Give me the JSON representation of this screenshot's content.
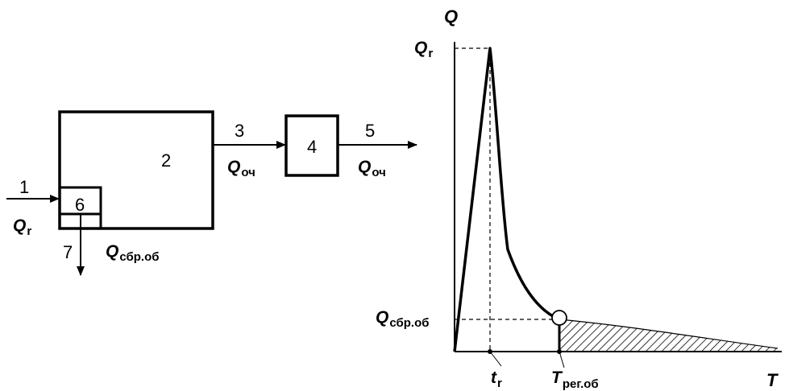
{
  "scheme": {
    "labels": {
      "n1": "1",
      "n2": "2",
      "n3": "3",
      "n4": "4",
      "n5": "5",
      "n6": "6",
      "n7": "7"
    },
    "flows": {
      "q_in": {
        "main": "Q",
        "sub": "r"
      },
      "q_clean_1": {
        "main": "Q",
        "sub": "оч"
      },
      "q_clean_2": {
        "main": "Q",
        "sub": "оч"
      },
      "q_discharge": {
        "main": "Q",
        "sub": "сбр.об"
      }
    }
  },
  "graph": {
    "y_axis": {
      "main": "Q",
      "sub": ""
    },
    "x_axis": {
      "main": "T",
      "sub": ""
    },
    "y_marks": {
      "peak": {
        "main": "Q",
        "sub": "r"
      },
      "discharge": {
        "main": "Q",
        "sub": "сбр.об"
      }
    },
    "x_marks": {
      "tr": {
        "main": "t",
        "sub": "r"
      },
      "treg": {
        "main": "T",
        "sub": "рег.об"
      }
    }
  }
}
